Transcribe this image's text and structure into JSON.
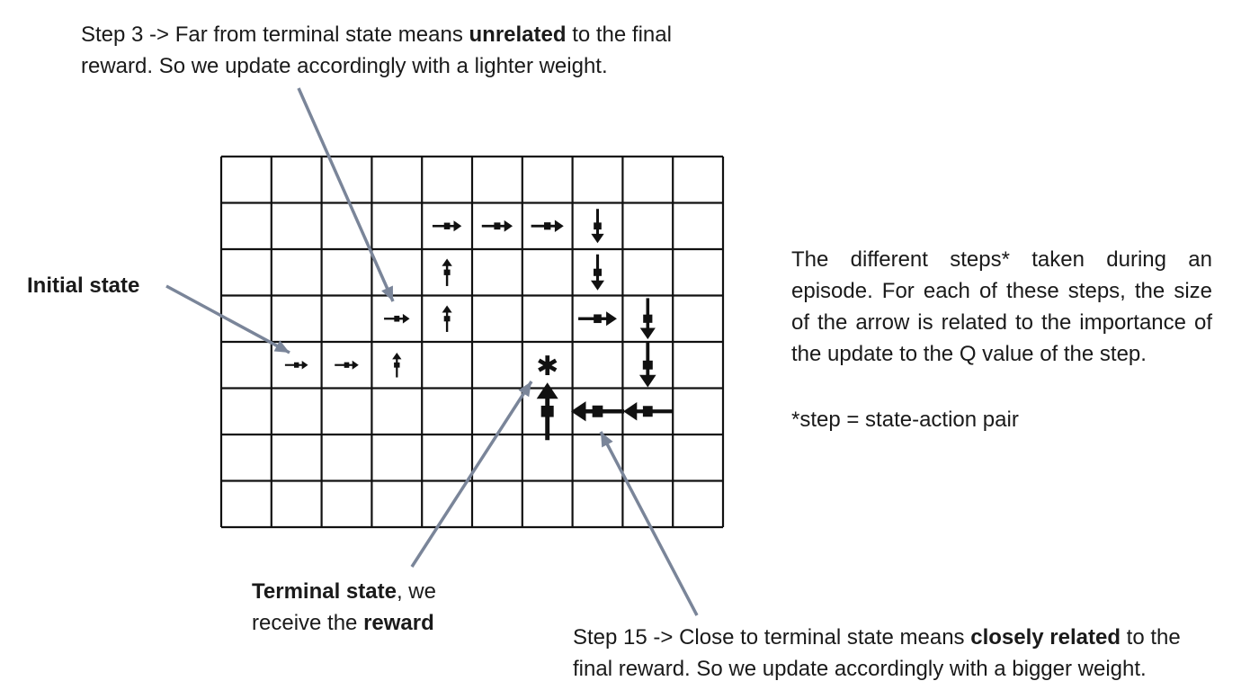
{
  "annotations": {
    "step3": {
      "prefix": "Step 3 -> Far from terminal state means ",
      "bold": "unrelated",
      "suffix": " to the final",
      "line2": "reward. So we update accordingly with a lighter weight."
    },
    "initial": {
      "label": "Initial state"
    },
    "terminal": {
      "bold": "Terminal state",
      "suffix": ", we",
      "line2_prefix": "receive the ",
      "line2_bold": "reward"
    },
    "step15": {
      "prefix": "Step 15 -> Close to terminal state means ",
      "bold": "closely related",
      "suffix": " to the",
      "line2": "final reward. So we update accordingly with a bigger weight."
    },
    "description": "The different steps* taken during an episode. For each of these steps, the size of the arrow is related to the importance of the update to the Q value of the step.",
    "footnote": "*step = state-action pair"
  },
  "grid": {
    "columns": 10,
    "rows": 8,
    "terminal_cell": {
      "col": 6,
      "row": 4,
      "symbol": "✱"
    }
  },
  "trajectory_arrows": [
    {
      "col": 1,
      "row": 4,
      "dir": "right",
      "size": 0.2
    },
    {
      "col": 2,
      "row": 4,
      "dir": "right",
      "size": 0.22
    },
    {
      "col": 3,
      "row": 4,
      "dir": "up",
      "size": 0.24
    },
    {
      "col": 3,
      "row": 3,
      "dir": "right",
      "size": 0.26
    },
    {
      "col": 4,
      "row": 3,
      "dir": "up",
      "size": 0.28
    },
    {
      "col": 4,
      "row": 2,
      "dir": "up",
      "size": 0.3
    },
    {
      "col": 4,
      "row": 1,
      "dir": "right",
      "size": 0.34
    },
    {
      "col": 5,
      "row": 1,
      "dir": "right",
      "size": 0.38
    },
    {
      "col": 6,
      "row": 1,
      "dir": "right",
      "size": 0.42
    },
    {
      "col": 7,
      "row": 1,
      "dir": "down",
      "size": 0.46
    },
    {
      "col": 7,
      "row": 2,
      "dir": "down",
      "size": 0.5
    },
    {
      "col": 7,
      "row": 3,
      "dir": "right",
      "size": 0.56
    },
    {
      "col": 8,
      "row": 3,
      "dir": "down",
      "size": 0.62
    },
    {
      "col": 8,
      "row": 4,
      "dir": "down",
      "size": 0.7
    },
    {
      "col": 8,
      "row": 5,
      "dir": "left",
      "size": 0.8
    },
    {
      "col": 7,
      "row": 5,
      "dir": "left",
      "size": 0.9
    },
    {
      "col": 6,
      "row": 5,
      "dir": "up",
      "size": 1.0
    }
  ],
  "colors": {
    "pointer": "#7a8599",
    "grid_line": "#111111",
    "arrow": "#111111"
  }
}
